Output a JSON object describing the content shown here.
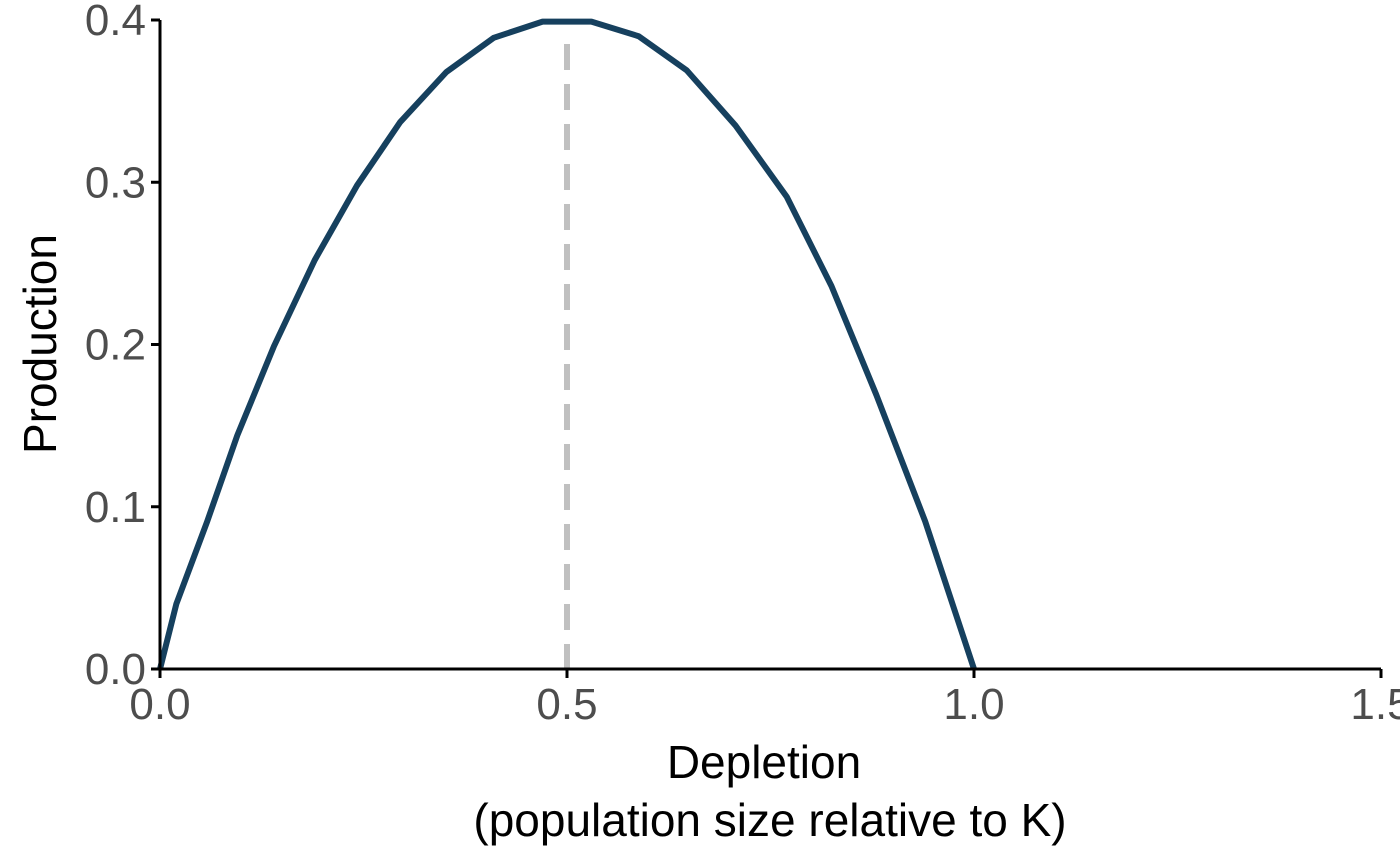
{
  "chart_data": {
    "type": "line",
    "title": "",
    "xlabel_lines": [
      "Depletion",
      "(population size relative to K)"
    ],
    "ylabel": "Production",
    "xlim": [
      0,
      1.5
    ],
    "ylim": [
      0,
      0.4
    ],
    "xticks": [
      0.0,
      0.5,
      1.0,
      1.5
    ],
    "xtick_labels": [
      "0.0",
      "0.5",
      "1.0",
      "1.5"
    ],
    "yticks": [
      0.0,
      0.1,
      0.2,
      0.3,
      0.4
    ],
    "ytick_labels": [
      "0.0",
      "0.1",
      "0.2",
      "0.3",
      "0.4"
    ],
    "grid": false,
    "series": [
      {
        "color": "#16405e",
        "x": [
          0.0,
          0.02,
          0.058,
          0.095,
          0.14,
          0.19,
          0.242,
          0.295,
          0.352,
          0.41,
          0.47,
          0.53,
          0.588,
          0.647,
          0.707,
          0.77,
          0.825,
          0.88,
          0.94,
          1.0
        ],
        "y": [
          0.0,
          0.04,
          0.091,
          0.144,
          0.199,
          0.252,
          0.298,
          0.337,
          0.368,
          0.389,
          0.399,
          0.399,
          0.39,
          0.369,
          0.335,
          0.291,
          0.236,
          0.169,
          0.091,
          0.0
        ]
      }
    ],
    "reference_lines": [
      {
        "orientation": "vertical",
        "x": 0.5,
        "style": "dashed",
        "color": "#c0c0c0"
      }
    ]
  }
}
